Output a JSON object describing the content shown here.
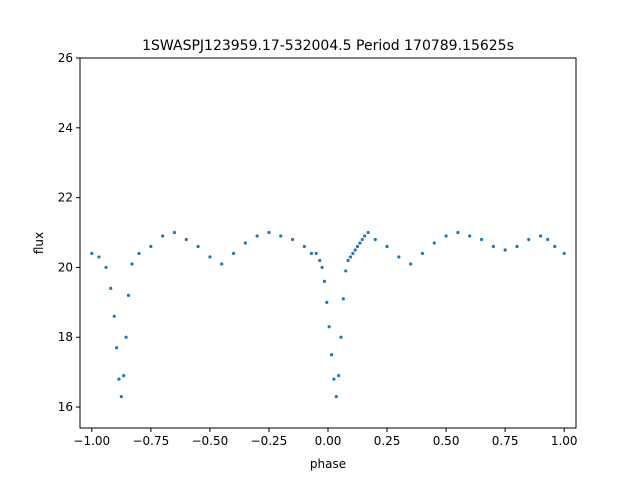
{
  "chart_data": {
    "type": "scatter",
    "title": "1SWASPJ123959.17-532004.5 Period 170789.15625s",
    "xlabel": "phase",
    "ylabel": "flux",
    "xlim": [
      -1.05,
      1.05
    ],
    "ylim": [
      15.4,
      26.0
    ],
    "xticks": [
      -1.0,
      -0.75,
      -0.5,
      -0.25,
      0.0,
      0.25,
      0.5,
      0.75,
      1.0
    ],
    "xtick_labels": [
      "−1.00",
      "−0.75",
      "−0.50",
      "−0.25",
      "0.00",
      "0.25",
      "0.50",
      "0.75",
      "1.00"
    ],
    "yticks": [
      16,
      18,
      20,
      22,
      24,
      26
    ],
    "ytick_labels": [
      "16",
      "18",
      "20",
      "22",
      "24",
      "26"
    ],
    "grid": false,
    "legend": "none",
    "marker_color": "#1f77b4",
    "series": [
      {
        "x": [
          -1.0,
          -0.97,
          -0.94,
          -0.92,
          -0.905,
          -0.895,
          -0.885,
          -0.875,
          -0.865,
          -0.855,
          -0.845,
          -0.83,
          -0.8,
          -0.75,
          -0.7,
          -0.65,
          -0.6,
          -0.55,
          -0.5,
          -0.45,
          -0.4,
          -0.35,
          -0.3,
          -0.25,
          -0.2,
          -0.15,
          -0.1,
          -0.07,
          -0.05,
          -0.035,
          -0.025,
          -0.015,
          -0.005,
          0.005,
          0.015,
          0.025,
          0.035,
          0.045,
          0.055,
          0.065,
          0.075,
          0.085,
          0.095,
          0.105,
          0.115,
          0.125,
          0.135,
          0.145,
          0.155,
          0.17,
          0.2,
          0.25,
          0.3,
          0.35,
          0.4,
          0.45,
          0.5,
          0.55,
          0.6,
          0.65,
          0.7,
          0.75,
          0.8,
          0.85,
          0.9,
          0.93,
          0.96,
          1.0
        ],
        "y": [
          20.4,
          20.3,
          20.0,
          19.4,
          18.6,
          17.7,
          16.8,
          16.3,
          16.9,
          18.0,
          19.2,
          20.1,
          20.4,
          20.6,
          20.9,
          21.0,
          20.8,
          20.6,
          20.3,
          20.1,
          20.4,
          20.7,
          20.9,
          21.0,
          20.9,
          20.8,
          20.6,
          20.4,
          20.4,
          20.2,
          20.0,
          19.6,
          19.0,
          18.3,
          17.5,
          16.8,
          16.3,
          16.9,
          18.0,
          19.1,
          19.9,
          20.2,
          20.3,
          20.4,
          20.5,
          20.6,
          20.7,
          20.8,
          20.9,
          21.0,
          20.8,
          20.6,
          20.3,
          20.1,
          20.4,
          20.7,
          20.9,
          21.0,
          20.9,
          20.8,
          20.6,
          20.5,
          20.6,
          20.8,
          20.9,
          20.8,
          20.6,
          20.4
        ]
      }
    ]
  }
}
